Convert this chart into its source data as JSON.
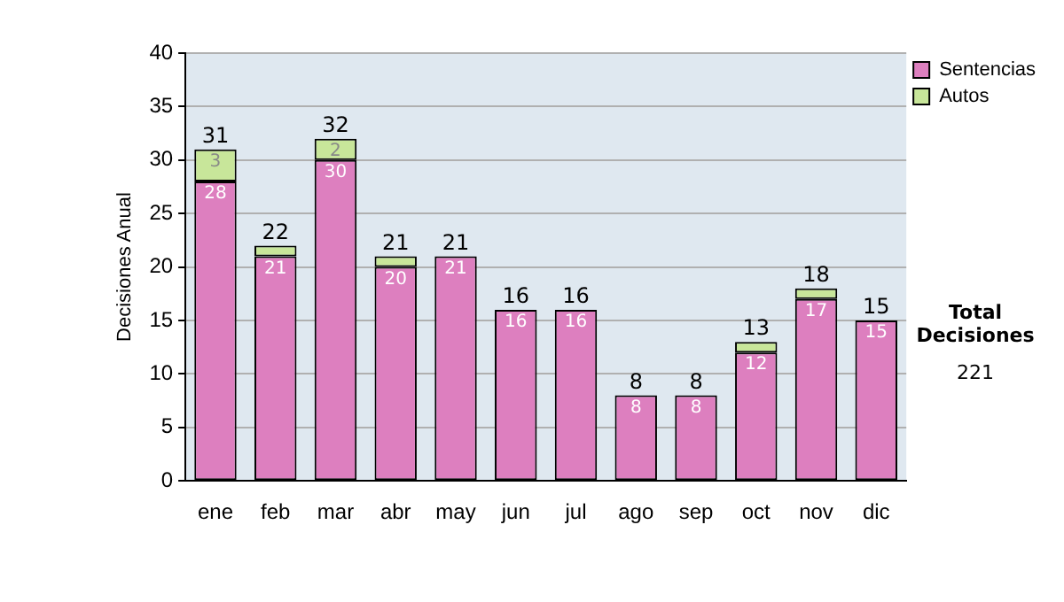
{
  "chart_data": {
    "type": "bar",
    "stacked": true,
    "ylabel": "Decisiones Anual",
    "categories": [
      "ene",
      "feb",
      "mar",
      "abr",
      "may",
      "jun",
      "jul",
      "ago",
      "sep",
      "oct",
      "nov",
      "dic"
    ],
    "series": [
      {
        "name": "Sentencias",
        "color": "#dd7fbf",
        "values": [
          28,
          21,
          30,
          20,
          21,
          16,
          16,
          8,
          8,
          12,
          17,
          15
        ],
        "value_labels": [
          "28",
          "21",
          "30",
          "20",
          "21",
          "16",
          "16",
          "8",
          "8",
          "12",
          "17",
          "15"
        ]
      },
      {
        "name": "Autos",
        "color": "#c8e69a",
        "values": [
          3,
          1,
          2,
          1,
          0,
          0,
          0,
          0,
          0,
          1,
          1,
          0
        ],
        "value_labels": [
          "3",
          null,
          "2",
          null,
          null,
          null,
          null,
          null,
          null,
          null,
          null,
          null
        ]
      }
    ],
    "totals": [
      "31",
      "22",
      "32",
      "21",
      "21",
      "16",
      "16",
      "8",
      "8",
      "13",
      "18",
      "15"
    ],
    "ylim": [
      0,
      40
    ],
    "yticks": [
      0,
      5,
      10,
      15,
      20,
      25,
      30,
      35,
      40
    ],
    "grid": "y",
    "legend": "right",
    "annotations": [
      "Total Decisiones",
      "221"
    ]
  }
}
